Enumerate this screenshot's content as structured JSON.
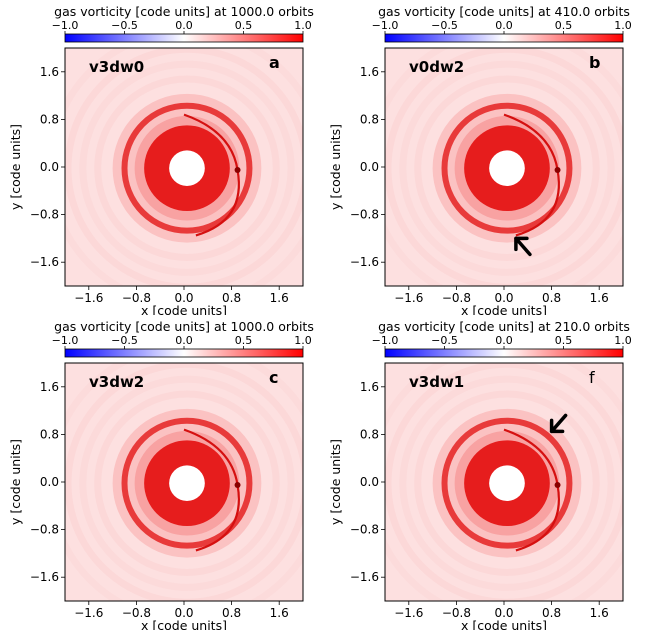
{
  "chart_data": [
    {
      "type": "heatmap",
      "panel_letter": "a",
      "simulation_label": "v3dw0",
      "title": "gas vorticity [code units] at 1000.0 orbits",
      "xlabel": "x [code units]",
      "ylabel": "y [code units]",
      "xticks": [
        "−1.6",
        "−0.8",
        "0.0",
        "0.8",
        "1.6"
      ],
      "yticks": [
        "1.6",
        "0.8",
        "0.0",
        "−0.8",
        "−1.6"
      ],
      "xlim": [
        -2.0,
        2.0
      ],
      "ylim": [
        -2.0,
        2.0
      ],
      "colorbar": {
        "min": -1.0,
        "max": 1.0,
        "ticks": [
          "−1.0",
          "−0.5",
          "0.0",
          "0.5",
          "1.0"
        ]
      },
      "planet": {
        "x": 0.9,
        "y": -0.05
      },
      "arrow": null
    },
    {
      "type": "heatmap",
      "panel_letter": "b",
      "simulation_label": "v0dw2",
      "title": "gas vorticity [code units] at 410.0 orbits",
      "xlabel": "x [code units]",
      "ylabel": "y [code units]",
      "xticks": [
        "−1.6",
        "−0.8",
        "0.0",
        "0.8",
        "1.6"
      ],
      "yticks": [
        "1.6",
        "0.8",
        "0.0",
        "−0.8",
        "−1.6"
      ],
      "xlim": [
        -2.0,
        2.0
      ],
      "ylim": [
        -2.0,
        2.0
      ],
      "colorbar": {
        "min": -1.0,
        "max": 1.0,
        "ticks": [
          "−1.0",
          "−0.5",
          "0.0",
          "0.5",
          "1.0"
        ]
      },
      "planet": {
        "x": 0.9,
        "y": -0.05
      },
      "arrow": {
        "x": 0.2,
        "y": -1.2,
        "direction": "up-left"
      }
    },
    {
      "type": "heatmap",
      "panel_letter": "c",
      "simulation_label": "v3dw2",
      "title": "gas vorticity [code units] at 1000.0 orbits",
      "xlabel": "x [code units]",
      "ylabel": "y [code units]",
      "xticks": [
        "−1.6",
        "−0.8",
        "0.0",
        "0.8",
        "1.6"
      ],
      "yticks": [
        "1.6",
        "0.8",
        "0.0",
        "−0.8",
        "−1.6"
      ],
      "xlim": [
        -2.0,
        2.0
      ],
      "ylim": [
        -2.0,
        2.0
      ],
      "colorbar": {
        "min": -1.0,
        "max": 1.0,
        "ticks": [
          "−1.0",
          "−0.5",
          "0.0",
          "0.5",
          "1.0"
        ]
      },
      "planet": {
        "x": 0.9,
        "y": -0.05
      },
      "arrow": null
    },
    {
      "type": "heatmap",
      "panel_letter": "f",
      "simulation_label": "v3dw1",
      "title": "gas vorticity [code units] at 210.0 orbits",
      "xlabel": "x [code units]",
      "ylabel": "y [code units]",
      "xticks": [
        "−1.6",
        "−0.8",
        "0.0",
        "0.8",
        "1.6"
      ],
      "yticks": [
        "1.6",
        "0.8",
        "0.0",
        "−0.8",
        "−1.6"
      ],
      "xlim": [
        -2.0,
        2.0
      ],
      "ylim": [
        -2.0,
        2.0
      ],
      "colorbar": {
        "min": -1.0,
        "max": 1.0,
        "ticks": [
          "−1.0",
          "−0.5",
          "0.0",
          "0.5",
          "1.0"
        ]
      },
      "planet": {
        "x": 0.9,
        "y": -0.05
      },
      "arrow": {
        "x": 0.8,
        "y": 0.85,
        "direction": "down-left"
      }
    }
  ],
  "colors": {
    "colormap_low": "#0000ff",
    "colormap_mid": "#ffffff",
    "colormap_high": "#ff0000",
    "background_field": "#fde0e0",
    "inner_hole": "#ffffff"
  }
}
